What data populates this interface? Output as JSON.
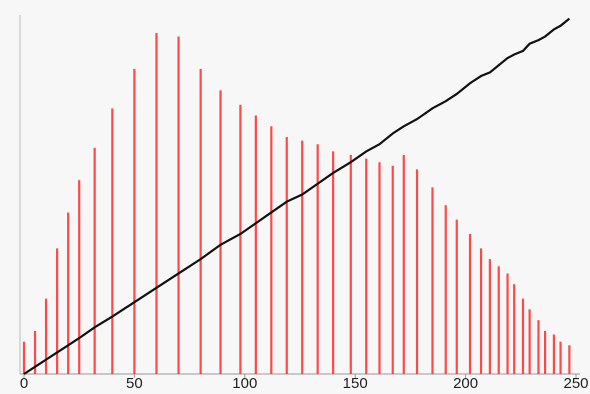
{
  "chart_data": {
    "type": "bar",
    "x": [
      0,
      5,
      10,
      15,
      20,
      25,
      32,
      40,
      50,
      60,
      70,
      80,
      89,
      98,
      105,
      112,
      119,
      126,
      133,
      140,
      148,
      155,
      161,
      167,
      172,
      178,
      185,
      191,
      196,
      202,
      207,
      211,
      215,
      219,
      222,
      226,
      229,
      233,
      236,
      240,
      243,
      247
    ],
    "series": [
      {
        "type": "bar",
        "color": "#ff2a2a",
        "values": [
          9,
          12,
          21,
          35,
          45,
          54,
          63,
          74,
          85,
          95,
          94,
          85,
          79,
          75,
          72,
          69,
          66,
          65,
          64,
          62,
          61,
          60,
          59,
          58,
          61,
          57,
          52,
          47,
          43,
          39,
          35,
          32,
          30,
          28,
          25,
          21,
          18,
          15,
          12,
          11,
          9,
          8
        ]
      },
      {
        "type": "line",
        "color": "#111111",
        "values": [
          0,
          2,
          4,
          6,
          8,
          10,
          13,
          16,
          20,
          24,
          28,
          32,
          36,
          39,
          42,
          45,
          48,
          50,
          53,
          56,
          59,
          62,
          64,
          67,
          69,
          71,
          74,
          76,
          78,
          81,
          83,
          84,
          86,
          88,
          89,
          90,
          92,
          93,
          94,
          96,
          97,
          99
        ]
      }
    ],
    "xlim": [
      0,
      250
    ],
    "xticks": [
      0,
      50,
      100,
      150,
      200,
      250
    ],
    "ylim": [
      0,
      100
    ]
  }
}
